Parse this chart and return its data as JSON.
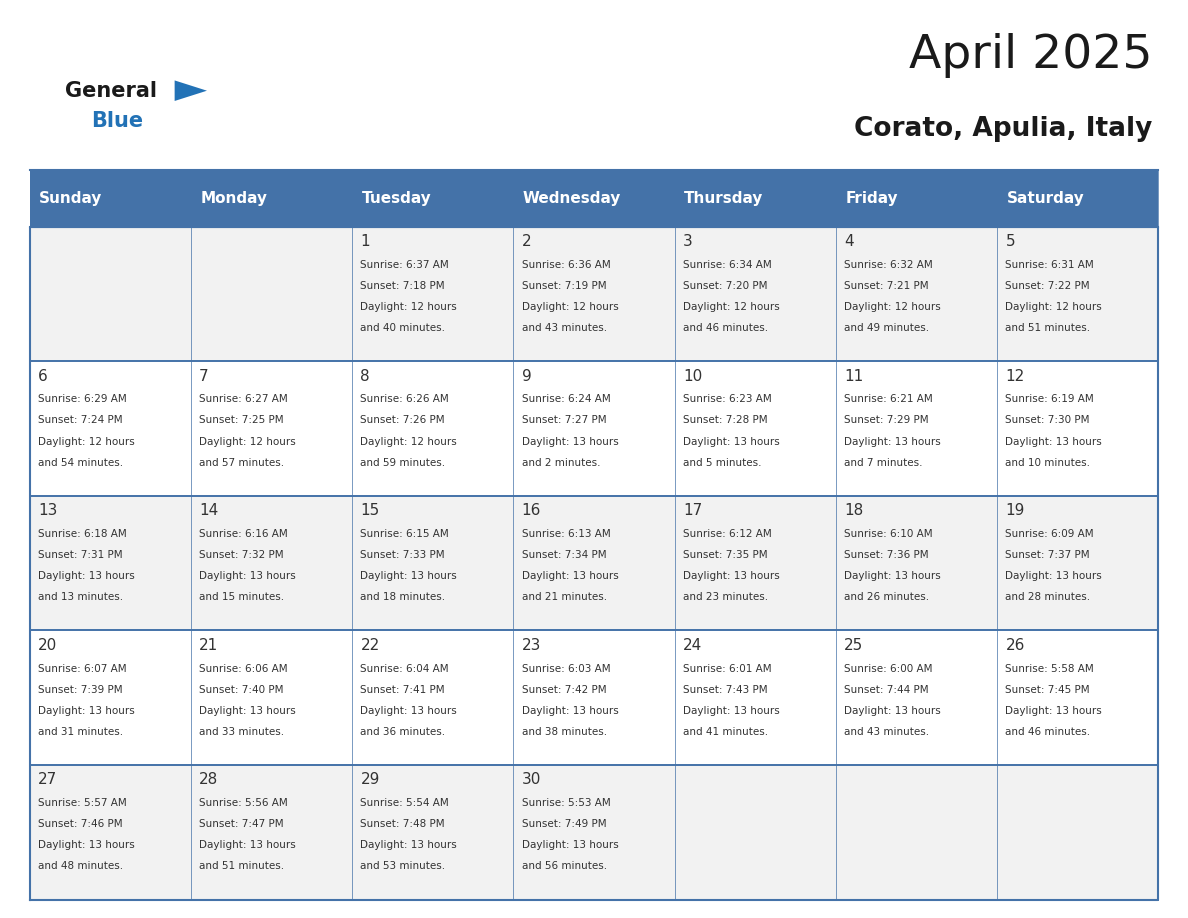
{
  "title": "April 2025",
  "subtitle": "Corato, Apulia, Italy",
  "header_bg": "#4472a8",
  "header_text": "#ffffff",
  "row_bg_odd": "#f2f2f2",
  "row_bg_even": "#ffffff",
  "border_color": "#4472a8",
  "text_color": "#333333",
  "days_of_week": [
    "Sunday",
    "Monday",
    "Tuesday",
    "Wednesday",
    "Thursday",
    "Friday",
    "Saturday"
  ],
  "calendar_data": [
    [
      {
        "day": "",
        "sunrise": "",
        "sunset": "",
        "daylight": ""
      },
      {
        "day": "",
        "sunrise": "",
        "sunset": "",
        "daylight": ""
      },
      {
        "day": "1",
        "sunrise": "Sunrise: 6:37 AM",
        "sunset": "Sunset: 7:18 PM",
        "daylight": "Daylight: 12 hours\nand 40 minutes."
      },
      {
        "day": "2",
        "sunrise": "Sunrise: 6:36 AM",
        "sunset": "Sunset: 7:19 PM",
        "daylight": "Daylight: 12 hours\nand 43 minutes."
      },
      {
        "day": "3",
        "sunrise": "Sunrise: 6:34 AM",
        "sunset": "Sunset: 7:20 PM",
        "daylight": "Daylight: 12 hours\nand 46 minutes."
      },
      {
        "day": "4",
        "sunrise": "Sunrise: 6:32 AM",
        "sunset": "Sunset: 7:21 PM",
        "daylight": "Daylight: 12 hours\nand 49 minutes."
      },
      {
        "day": "5",
        "sunrise": "Sunrise: 6:31 AM",
        "sunset": "Sunset: 7:22 PM",
        "daylight": "Daylight: 12 hours\nand 51 minutes."
      }
    ],
    [
      {
        "day": "6",
        "sunrise": "Sunrise: 6:29 AM",
        "sunset": "Sunset: 7:24 PM",
        "daylight": "Daylight: 12 hours\nand 54 minutes."
      },
      {
        "day": "7",
        "sunrise": "Sunrise: 6:27 AM",
        "sunset": "Sunset: 7:25 PM",
        "daylight": "Daylight: 12 hours\nand 57 minutes."
      },
      {
        "day": "8",
        "sunrise": "Sunrise: 6:26 AM",
        "sunset": "Sunset: 7:26 PM",
        "daylight": "Daylight: 12 hours\nand 59 minutes."
      },
      {
        "day": "9",
        "sunrise": "Sunrise: 6:24 AM",
        "sunset": "Sunset: 7:27 PM",
        "daylight": "Daylight: 13 hours\nand 2 minutes."
      },
      {
        "day": "10",
        "sunrise": "Sunrise: 6:23 AM",
        "sunset": "Sunset: 7:28 PM",
        "daylight": "Daylight: 13 hours\nand 5 minutes."
      },
      {
        "day": "11",
        "sunrise": "Sunrise: 6:21 AM",
        "sunset": "Sunset: 7:29 PM",
        "daylight": "Daylight: 13 hours\nand 7 minutes."
      },
      {
        "day": "12",
        "sunrise": "Sunrise: 6:19 AM",
        "sunset": "Sunset: 7:30 PM",
        "daylight": "Daylight: 13 hours\nand 10 minutes."
      }
    ],
    [
      {
        "day": "13",
        "sunrise": "Sunrise: 6:18 AM",
        "sunset": "Sunset: 7:31 PM",
        "daylight": "Daylight: 13 hours\nand 13 minutes."
      },
      {
        "day": "14",
        "sunrise": "Sunrise: 6:16 AM",
        "sunset": "Sunset: 7:32 PM",
        "daylight": "Daylight: 13 hours\nand 15 minutes."
      },
      {
        "day": "15",
        "sunrise": "Sunrise: 6:15 AM",
        "sunset": "Sunset: 7:33 PM",
        "daylight": "Daylight: 13 hours\nand 18 minutes."
      },
      {
        "day": "16",
        "sunrise": "Sunrise: 6:13 AM",
        "sunset": "Sunset: 7:34 PM",
        "daylight": "Daylight: 13 hours\nand 21 minutes."
      },
      {
        "day": "17",
        "sunrise": "Sunrise: 6:12 AM",
        "sunset": "Sunset: 7:35 PM",
        "daylight": "Daylight: 13 hours\nand 23 minutes."
      },
      {
        "day": "18",
        "sunrise": "Sunrise: 6:10 AM",
        "sunset": "Sunset: 7:36 PM",
        "daylight": "Daylight: 13 hours\nand 26 minutes."
      },
      {
        "day": "19",
        "sunrise": "Sunrise: 6:09 AM",
        "sunset": "Sunset: 7:37 PM",
        "daylight": "Daylight: 13 hours\nand 28 minutes."
      }
    ],
    [
      {
        "day": "20",
        "sunrise": "Sunrise: 6:07 AM",
        "sunset": "Sunset: 7:39 PM",
        "daylight": "Daylight: 13 hours\nand 31 minutes."
      },
      {
        "day": "21",
        "sunrise": "Sunrise: 6:06 AM",
        "sunset": "Sunset: 7:40 PM",
        "daylight": "Daylight: 13 hours\nand 33 minutes."
      },
      {
        "day": "22",
        "sunrise": "Sunrise: 6:04 AM",
        "sunset": "Sunset: 7:41 PM",
        "daylight": "Daylight: 13 hours\nand 36 minutes."
      },
      {
        "day": "23",
        "sunrise": "Sunrise: 6:03 AM",
        "sunset": "Sunset: 7:42 PM",
        "daylight": "Daylight: 13 hours\nand 38 minutes."
      },
      {
        "day": "24",
        "sunrise": "Sunrise: 6:01 AM",
        "sunset": "Sunset: 7:43 PM",
        "daylight": "Daylight: 13 hours\nand 41 minutes."
      },
      {
        "day": "25",
        "sunrise": "Sunrise: 6:00 AM",
        "sunset": "Sunset: 7:44 PM",
        "daylight": "Daylight: 13 hours\nand 43 minutes."
      },
      {
        "day": "26",
        "sunrise": "Sunrise: 5:58 AM",
        "sunset": "Sunset: 7:45 PM",
        "daylight": "Daylight: 13 hours\nand 46 minutes."
      }
    ],
    [
      {
        "day": "27",
        "sunrise": "Sunrise: 5:57 AM",
        "sunset": "Sunset: 7:46 PM",
        "daylight": "Daylight: 13 hours\nand 48 minutes."
      },
      {
        "day": "28",
        "sunrise": "Sunrise: 5:56 AM",
        "sunset": "Sunset: 7:47 PM",
        "daylight": "Daylight: 13 hours\nand 51 minutes."
      },
      {
        "day": "29",
        "sunrise": "Sunrise: 5:54 AM",
        "sunset": "Sunset: 7:48 PM",
        "daylight": "Daylight: 13 hours\nand 53 minutes."
      },
      {
        "day": "30",
        "sunrise": "Sunrise: 5:53 AM",
        "sunset": "Sunset: 7:49 PM",
        "daylight": "Daylight: 13 hours\nand 56 minutes."
      },
      {
        "day": "",
        "sunrise": "",
        "sunset": "",
        "daylight": ""
      },
      {
        "day": "",
        "sunrise": "",
        "sunset": "",
        "daylight": ""
      },
      {
        "day": "",
        "sunrise": "",
        "sunset": "",
        "daylight": ""
      }
    ]
  ],
  "logo_general_color": "#1a1a1a",
  "logo_blue_color": "#2272b6",
  "logo_triangle_color": "#2272b6",
  "title_color": "#1a1a1a",
  "subtitle_color": "#1a1a1a"
}
